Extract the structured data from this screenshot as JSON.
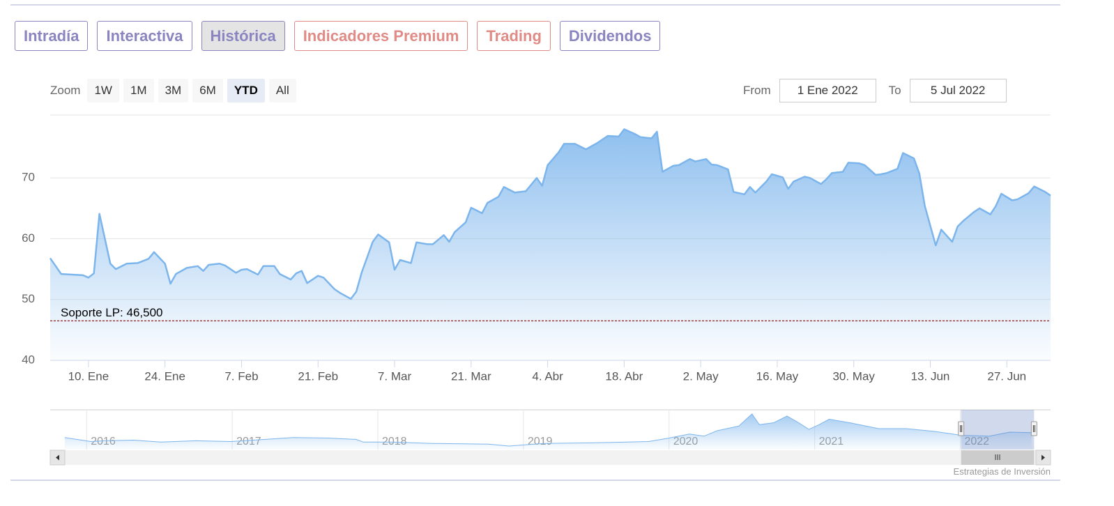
{
  "tabs": [
    {
      "label": "Intradía",
      "color": "#8a85c0",
      "active": false
    },
    {
      "label": "Interactiva",
      "color": "#8a85c0",
      "active": false
    },
    {
      "label": "Histórica",
      "color": "#8a85c0",
      "active": true
    },
    {
      "label": "Indicadores Premium",
      "color": "#e08b85",
      "active": false
    },
    {
      "label": "Trading",
      "color": "#e08b85",
      "active": false
    },
    {
      "label": "Dividendos",
      "color": "#8a85c0",
      "active": false
    }
  ],
  "zoom": {
    "label": "Zoom",
    "buttons": [
      {
        "label": "1W",
        "active": false
      },
      {
        "label": "1M",
        "active": false
      },
      {
        "label": "3M",
        "active": false
      },
      {
        "label": "6M",
        "active": false
      },
      {
        "label": "YTD",
        "active": true
      },
      {
        "label": "All",
        "active": false
      }
    ]
  },
  "range": {
    "from_label": "From",
    "from": "1 Ene 2022",
    "to_label": "To",
    "to": "5 Jul 2022"
  },
  "credits": "Estrategias de Inversión",
  "chart_data": [
    {
      "type": "area",
      "color": "#7cb5ec",
      "x": [
        "2022-01-03",
        "2022-01-05",
        "2022-01-09",
        "2022-01-10",
        "2022-01-11",
        "2022-01-12",
        "2022-01-14",
        "2022-01-15",
        "2022-01-17",
        "2022-01-19",
        "2022-01-21",
        "2022-01-22",
        "2022-01-24",
        "2022-01-25",
        "2022-01-26",
        "2022-01-28",
        "2022-01-30",
        "2022-01-31",
        "2022-02-01",
        "2022-02-03",
        "2022-02-04",
        "2022-02-06",
        "2022-02-07",
        "2022-02-08",
        "2022-02-10",
        "2022-02-11",
        "2022-02-13",
        "2022-02-14",
        "2022-02-16",
        "2022-02-17",
        "2022-02-18",
        "2022-02-19",
        "2022-02-21",
        "2022-02-22",
        "2022-02-24",
        "2022-02-25",
        "2022-02-27",
        "2022-02-28",
        "2022-03-01",
        "2022-03-03",
        "2022-03-04",
        "2022-03-06",
        "2022-03-07",
        "2022-03-08",
        "2022-03-10",
        "2022-03-11",
        "2022-03-13",
        "2022-03-14",
        "2022-03-16",
        "2022-03-17",
        "2022-03-18",
        "2022-03-20",
        "2022-03-21",
        "2022-03-23",
        "2022-03-24",
        "2022-03-26",
        "2022-03-27",
        "2022-03-29",
        "2022-03-31",
        "2022-04-02",
        "2022-04-03",
        "2022-04-04",
        "2022-04-06",
        "2022-04-07",
        "2022-04-09",
        "2022-04-11",
        "2022-04-13",
        "2022-04-15",
        "2022-04-17",
        "2022-04-18",
        "2022-04-20",
        "2022-04-21",
        "2022-04-23",
        "2022-04-24",
        "2022-04-25",
        "2022-04-27",
        "2022-04-28",
        "2022-04-30",
        "2022-05-01",
        "2022-05-03",
        "2022-05-04",
        "2022-05-05",
        "2022-05-07",
        "2022-05-08",
        "2022-05-10",
        "2022-05-11",
        "2022-05-12",
        "2022-05-14",
        "2022-05-15",
        "2022-05-17",
        "2022-05-18",
        "2022-05-19",
        "2022-05-21",
        "2022-05-22",
        "2022-05-24",
        "2022-05-25",
        "2022-05-26",
        "2022-05-28",
        "2022-05-29",
        "2022-05-31",
        "2022-06-01",
        "2022-06-03",
        "2022-06-04",
        "2022-06-05",
        "2022-06-07",
        "2022-06-08",
        "2022-06-10",
        "2022-06-11",
        "2022-06-12",
        "2022-06-14",
        "2022-06-15",
        "2022-06-17",
        "2022-06-18",
        "2022-06-19",
        "2022-06-21",
        "2022-06-22",
        "2022-06-24",
        "2022-06-25",
        "2022-06-26",
        "2022-06-28",
        "2022-06-29",
        "2022-07-01",
        "2022-07-02",
        "2022-07-04",
        "2022-07-05"
      ],
      "values": [
        56.8,
        54.2,
        54.0,
        53.6,
        54.3,
        64.1,
        55.9,
        55.0,
        55.9,
        56.0,
        56.7,
        57.8,
        55.9,
        52.6,
        54.2,
        55.2,
        55.5,
        54.7,
        55.7,
        55.9,
        55.6,
        54.4,
        54.9,
        55.0,
        54.1,
        55.5,
        55.5,
        54.2,
        53.3,
        54.3,
        54.7,
        52.7,
        53.9,
        53.6,
        51.7,
        51.1,
        50.1,
        51.3,
        54.5,
        59.5,
        60.7,
        59.4,
        54.9,
        56.5,
        56.0,
        59.4,
        59.1,
        59.1,
        60.6,
        59.5,
        61.1,
        62.7,
        65.1,
        64.2,
        65.9,
        66.9,
        68.5,
        67.6,
        67.8,
        70.0,
        68.7,
        72.1,
        74.2,
        75.6,
        75.6,
        74.7,
        75.7,
        76.9,
        76.8,
        78.0,
        77.2,
        76.7,
        76.5,
        77.6,
        71.0,
        72.0,
        72.1,
        73.1,
        72.7,
        73.1,
        72.2,
        72.1,
        71.4,
        67.7,
        67.3,
        68.5,
        67.6,
        69.4,
        70.6,
        70.1,
        68.2,
        69.4,
        70.2,
        70.0,
        69.0,
        69.8,
        70.8,
        71.0,
        72.5,
        72.4,
        72.1,
        70.5,
        70.6,
        70.8,
        71.5,
        74.1,
        73.2,
        70.7,
        65.4,
        58.9,
        61.5,
        59.5,
        62.0,
        62.9,
        64.4,
        65.0,
        64.0,
        65.4,
        67.4,
        66.3,
        66.5,
        67.5,
        68.6,
        67.7,
        67.1
      ],
      "xlim": [
        "2022-01-03",
        "2022-07-05"
      ],
      "ylim": [
        40,
        80
      ],
      "xticks": [
        {
          "value": "2022-01-10",
          "label": "10. Ene"
        },
        {
          "value": "2022-01-24",
          "label": "24. Ene"
        },
        {
          "value": "2022-02-07",
          "label": "7. Feb"
        },
        {
          "value": "2022-02-21",
          "label": "21. Feb"
        },
        {
          "value": "2022-03-07",
          "label": "7. Mar"
        },
        {
          "value": "2022-03-21",
          "label": "21. Mar"
        },
        {
          "value": "2022-04-04",
          "label": "4. Abr"
        },
        {
          "value": "2022-04-18",
          "label": "18. Abr"
        },
        {
          "value": "2022-05-02",
          "label": "2. May"
        },
        {
          "value": "2022-05-16",
          "label": "16. May"
        },
        {
          "value": "2022-05-30",
          "label": "30. May"
        },
        {
          "value": "2022-06-13",
          "label": "13. Jun"
        },
        {
          "value": "2022-06-27",
          "label": "27. Jun"
        }
      ],
      "yticks": [
        40,
        50,
        60,
        70
      ],
      "grid": true,
      "plot_lines": [
        {
          "value": 46.5,
          "label": "Soporte LP: 46,500",
          "color": "#8b0000"
        }
      ]
    },
    {
      "type": "area",
      "color": "#7cb5ec",
      "x": [
        2015.85,
        2015.93,
        2016.03,
        2016.12,
        2016.32,
        2016.51,
        2016.75,
        2016.99,
        2017.23,
        2017.42,
        2017.66,
        2017.85,
        2017.9,
        2018.09,
        2018.37,
        2018.76,
        2018.9,
        2019.14,
        2019.47,
        2019.86,
        2020.0,
        2020.14,
        2020.24,
        2020.33,
        2020.48,
        2020.53,
        2020.57,
        2020.62,
        2020.72,
        2020.81,
        2020.89,
        2020.96,
        2021.03,
        2021.1,
        2021.24,
        2021.44,
        2021.63,
        2021.82,
        2022.01,
        2022.2,
        2022.34,
        2022.49
      ],
      "values": [
        63,
        53,
        42,
        46,
        49,
        39,
        46,
        42,
        53,
        63,
        60,
        53,
        39,
        39,
        32,
        28,
        18,
        32,
        35,
        42,
        60,
        81,
        70,
        98,
        123,
        158,
        186,
        130,
        140,
        175,
        140,
        105,
        130,
        158,
        140,
        109,
        109,
        95,
        74,
        70,
        91,
        88
      ],
      "xlim": [
        2015.75,
        2022.62
      ],
      "ylim": [
        0,
        200
      ],
      "xticks": [
        2016,
        2017,
        2018,
        2019,
        2020,
        2021,
        2022
      ],
      "grid": true
    }
  ]
}
